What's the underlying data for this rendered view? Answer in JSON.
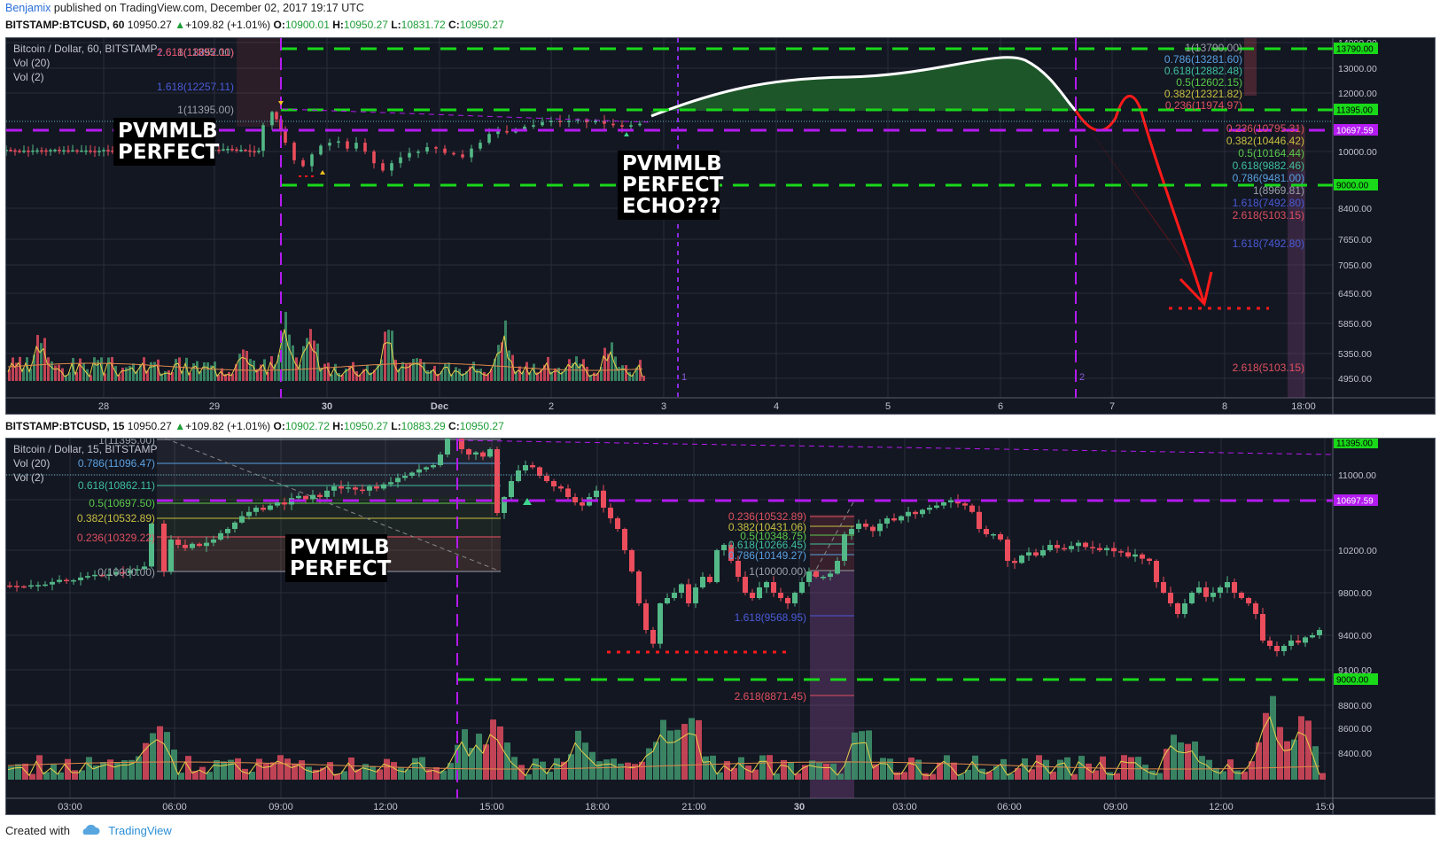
{
  "header": {
    "author": "Benjamix",
    "published": "published on TradingView.com, December 02, 2017 19:17 UTC"
  },
  "top": {
    "symbol": "BITSTAMP:BTCUSD, 60",
    "price": "10950.27",
    "change": "+109.82 (+1.01%)",
    "ohlc": {
      "O": "10900.01",
      "H": "10950.27",
      "L": "10831.72",
      "C": "10950.27"
    },
    "legend": [
      "Bitcoin / Dollar, 60, BITSTAMP",
      "Vol (20)",
      "Vol (2)"
    ],
    "yticks": [
      "14000.00",
      "13000.00",
      "12000.00",
      "10000.00",
      "8400.00",
      "7650.00",
      "7050.00",
      "6450.00",
      "5850.00",
      "5350.00",
      "4950.00"
    ],
    "xticks": [
      "28",
      "29",
      "30",
      "Dec",
      "2",
      "3",
      "4",
      "5",
      "6",
      "7",
      "8",
      "18:00"
    ],
    "badges": [
      {
        "text": "13790.00",
        "color": "#19d919"
      },
      {
        "text": "11395.00",
        "color": "#19d919"
      },
      {
        "text": "10697.59",
        "color": "#b41bf0"
      },
      {
        "text": "9000.00",
        "color": "#19d919"
      }
    ],
    "fib_left": [
      {
        "t": "2.618(13652.11)",
        "c": "#e05060"
      },
      {
        "t": "1.618(12257.11)",
        "c": "#4a5ad8"
      },
      {
        "t": "1(11395.00)",
        "c": "#9aa0aa"
      }
    ],
    "fib_up": [
      {
        "t": "1(13790.00)",
        "c": "#9aa0aa"
      },
      {
        "t": "0.786(13281.60)",
        "c": "#5aa0e0"
      },
      {
        "t": "0.618(12882.48)",
        "c": "#3fbf9f"
      },
      {
        "t": "0.5(12602.15)",
        "c": "#5ac84a"
      },
      {
        "t": "0.382(12321.82)",
        "c": "#c8c040"
      },
      {
        "t": "0.236(11974.97)",
        "c": "#e05060"
      }
    ],
    "fib_down": [
      {
        "t": "0.236(10795.31)",
        "c": "#e05060"
      },
      {
        "t": "0.382(10446.42)",
        "c": "#c8c040"
      },
      {
        "t": "0.5(10164.44)",
        "c": "#5ac84a"
      },
      {
        "t": "0.618(9882.46)",
        "c": "#3fbf9f"
      },
      {
        "t": "0.786(9481.00)",
        "c": "#5aa0e0"
      },
      {
        "t": "1(8969.81)",
        "c": "#9aa0aa"
      },
      {
        "t": "1.618(7492.80)",
        "c": "#4a5ad8"
      },
      {
        "t": "2.618(5103.15)",
        "c": "#e05060"
      }
    ],
    "annot1": [
      "PVMMLB",
      "PERFECT"
    ],
    "annot2": [
      "PVMMLB",
      "PERFECT",
      "ECHO???"
    ],
    "markers": [
      "1",
      "2"
    ]
  },
  "bottom": {
    "symbol": "BITSTAMP:BTCUSD, 15",
    "price": "10950.27",
    "change": "+109.82 (+1.01%)",
    "ohlc": {
      "O": "10902.72",
      "H": "10950.27",
      "L": "10883.29",
      "C": "10950.27"
    },
    "legend": [
      "Bitcoin / Dollar, 15, BITSTAMP",
      "Vol (20)",
      "Vol (2)"
    ],
    "yticks": [
      "11000.00",
      "10600.00",
      "10200.00",
      "9800.00",
      "9400.00",
      "9100.00",
      "8800.00",
      "8600.00",
      "8400.00"
    ],
    "xticks": [
      "03:00",
      "06:00",
      "09:00",
      "12:00",
      "15:00",
      "18:00",
      "21:00",
      "30",
      "03:00",
      "06:00",
      "09:00",
      "12:00",
      "15:0"
    ],
    "badges": [
      {
        "text": "11395.00",
        "color": "#19d919"
      },
      {
        "text": "10697.59",
        "color": "#b41bf0"
      },
      {
        "text": "9000.00",
        "color": "#19d919"
      }
    ],
    "fib_left": [
      {
        "t": "1(11395.00)",
        "c": "#9aa0aa"
      },
      {
        "t": "0.786(11096.47)",
        "c": "#5aa0e0"
      },
      {
        "t": "0.618(10862.11)",
        "c": "#3fbf9f"
      },
      {
        "t": "0.5(10697.50)",
        "c": "#5ac84a"
      },
      {
        "t": "0.382(10532.89)",
        "c": "#c8c040"
      },
      {
        "t": "0.236(10329.22)",
        "c": "#e05060"
      },
      {
        "t": "0(10000.00)",
        "c": "#9aa0aa"
      }
    ],
    "fib_mid": [
      {
        "t": "0.236(10532.89)",
        "c": "#e05060"
      },
      {
        "t": "0.382(10431.06)",
        "c": "#c8c040"
      },
      {
        "t": "0.5(10348.75)",
        "c": "#5ac84a"
      },
      {
        "t": "0.618(10266.45)",
        "c": "#3fbf9f"
      },
      {
        "t": "0.786(10149.27)",
        "c": "#5aa0e0"
      },
      {
        "t": "1(10000.00)",
        "c": "#9aa0aa"
      },
      {
        "t": "1.618(9568.95)",
        "c": "#4a5ad8"
      },
      {
        "t": "2.618(8871.45)",
        "c": "#e05060"
      }
    ],
    "annot": [
      "PVMMLB",
      "PERFECT"
    ]
  },
  "footer": {
    "created": "Created with",
    "brand": "TradingView"
  },
  "colors": {
    "bg": "#131722",
    "green": "#19d919",
    "purple": "#b41bf0",
    "up": "#3e8f6a",
    "down": "#d4485b",
    "red": "#ff1a1a"
  }
}
